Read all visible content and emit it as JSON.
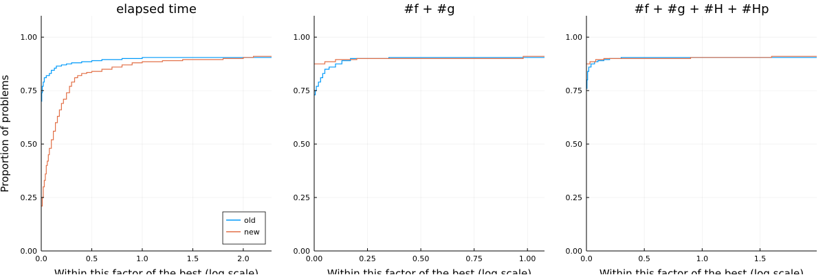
{
  "figure": {
    "ylabel": "Proportion of problems",
    "xlabel": "Within this factor of the best (log scale)"
  },
  "legend": {
    "location": "bottom-right",
    "entries": [
      {
        "name": "old",
        "color": "#009AFA"
      },
      {
        "name": "new",
        "color": "#E26F46"
      }
    ]
  },
  "chart_data": [
    {
      "type": "line",
      "step": true,
      "title": "elapsed time",
      "xlabel": "Within this factor of the best (log scale)",
      "ylabel": "Proportion of problems",
      "xlim": [
        0,
        2.28
      ],
      "ylim": [
        0,
        1.1
      ],
      "xticks": [
        0,
        0.5,
        1.0,
        1.5,
        2.0
      ],
      "xtick_labels": [
        "0.0",
        "0.5",
        "1.0",
        "1.5",
        "2.0"
      ],
      "yticks": [
        0,
        0.25,
        0.5,
        0.75,
        1.0
      ],
      "ytick_labels": [
        "0.00",
        "0.25",
        "0.50",
        "0.75",
        "1.00"
      ],
      "grid": true,
      "legend": true,
      "series": [
        {
          "name": "old",
          "color": "#009AFA",
          "x": [
            0,
            0.005,
            0.01,
            0.02,
            0.03,
            0.05,
            0.08,
            0.1,
            0.13,
            0.15,
            0.2,
            0.25,
            0.3,
            0.4,
            0.5,
            0.6,
            0.8,
            0.9,
            1.0,
            1.4,
            1.5,
            2.0,
            2.28
          ],
          "y": [
            0.7,
            0.74,
            0.77,
            0.79,
            0.81,
            0.82,
            0.83,
            0.845,
            0.855,
            0.865,
            0.87,
            0.875,
            0.88,
            0.885,
            0.89,
            0.895,
            0.9,
            0.9,
            0.905,
            0.905,
            0.905,
            0.905,
            0.905
          ]
        },
        {
          "name": "new",
          "color": "#E26F46",
          "x": [
            0,
            0.01,
            0.02,
            0.03,
            0.04,
            0.05,
            0.06,
            0.07,
            0.08,
            0.1,
            0.12,
            0.14,
            0.16,
            0.18,
            0.2,
            0.22,
            0.25,
            0.28,
            0.3,
            0.33,
            0.36,
            0.4,
            0.45,
            0.5,
            0.6,
            0.7,
            0.8,
            0.9,
            1.0,
            1.2,
            1.4,
            1.8,
            2.0,
            2.1,
            2.28
          ],
          "y": [
            0.21,
            0.25,
            0.3,
            0.33,
            0.36,
            0.4,
            0.42,
            0.45,
            0.48,
            0.52,
            0.56,
            0.6,
            0.63,
            0.66,
            0.69,
            0.71,
            0.74,
            0.77,
            0.79,
            0.81,
            0.82,
            0.83,
            0.835,
            0.84,
            0.85,
            0.86,
            0.87,
            0.88,
            0.885,
            0.89,
            0.895,
            0.9,
            0.905,
            0.91,
            0.91
          ]
        }
      ]
    },
    {
      "type": "line",
      "step": true,
      "title": "#f + #g",
      "xlabel": "Within this factor of the best (log scale)",
      "xlim": [
        0,
        1.08
      ],
      "ylim": [
        0,
        1.1
      ],
      "xticks": [
        0,
        0.25,
        0.5,
        0.75,
        1.0
      ],
      "xtick_labels": [
        "0.00",
        "0.25",
        "0.50",
        "0.75",
        "1.00"
      ],
      "yticks": [
        0,
        0.25,
        0.5,
        0.75,
        1.0
      ],
      "ytick_labels": [
        "0.00",
        "0.25",
        "0.50",
        "0.75",
        "1.00"
      ],
      "grid": true,
      "legend": false,
      "series": [
        {
          "name": "old",
          "color": "#009AFA",
          "x": [
            0,
            0.005,
            0.01,
            0.02,
            0.03,
            0.04,
            0.05,
            0.07,
            0.1,
            0.13,
            0.17,
            0.35,
            1.0,
            1.08
          ],
          "y": [
            0.73,
            0.75,
            0.77,
            0.79,
            0.81,
            0.83,
            0.85,
            0.86,
            0.875,
            0.89,
            0.9,
            0.905,
            0.905,
            0.905
          ]
        },
        {
          "name": "new",
          "color": "#E26F46",
          "x": [
            0,
            0.05,
            0.1,
            0.2,
            0.5,
            0.85,
            0.98,
            1.08
          ],
          "y": [
            0.875,
            0.885,
            0.895,
            0.9,
            0.9,
            0.9,
            0.91,
            0.91
          ]
        }
      ]
    },
    {
      "type": "line",
      "step": true,
      "title": "#f + #g + #H + #Hp",
      "xlabel": "Within this factor of the best (log scale)",
      "xlim": [
        0,
        1.99
      ],
      "ylim": [
        0,
        1.1
      ],
      "xticks": [
        0,
        0.5,
        1.0,
        1.5
      ],
      "xtick_labels": [
        "0.0",
        "0.5",
        "1.0",
        "1.5"
      ],
      "yticks": [
        0,
        0.25,
        0.5,
        0.75,
        1.0
      ],
      "ytick_labels": [
        "0.00",
        "0.25",
        "0.50",
        "0.75",
        "1.00"
      ],
      "grid": true,
      "legend": false,
      "series": [
        {
          "name": "old",
          "color": "#009AFA",
          "x": [
            0,
            0.005,
            0.01,
            0.02,
            0.04,
            0.07,
            0.1,
            0.15,
            0.2,
            0.3,
            1.0,
            1.99
          ],
          "y": [
            0.76,
            0.8,
            0.84,
            0.86,
            0.875,
            0.885,
            0.89,
            0.895,
            0.9,
            0.905,
            0.905,
            0.905
          ]
        },
        {
          "name": "new",
          "color": "#E26F46",
          "x": [
            0,
            0.03,
            0.08,
            0.15,
            0.3,
            0.9,
            1.6,
            1.99
          ],
          "y": [
            0.875,
            0.885,
            0.895,
            0.9,
            0.9,
            0.905,
            0.91,
            0.91
          ]
        }
      ]
    }
  ]
}
